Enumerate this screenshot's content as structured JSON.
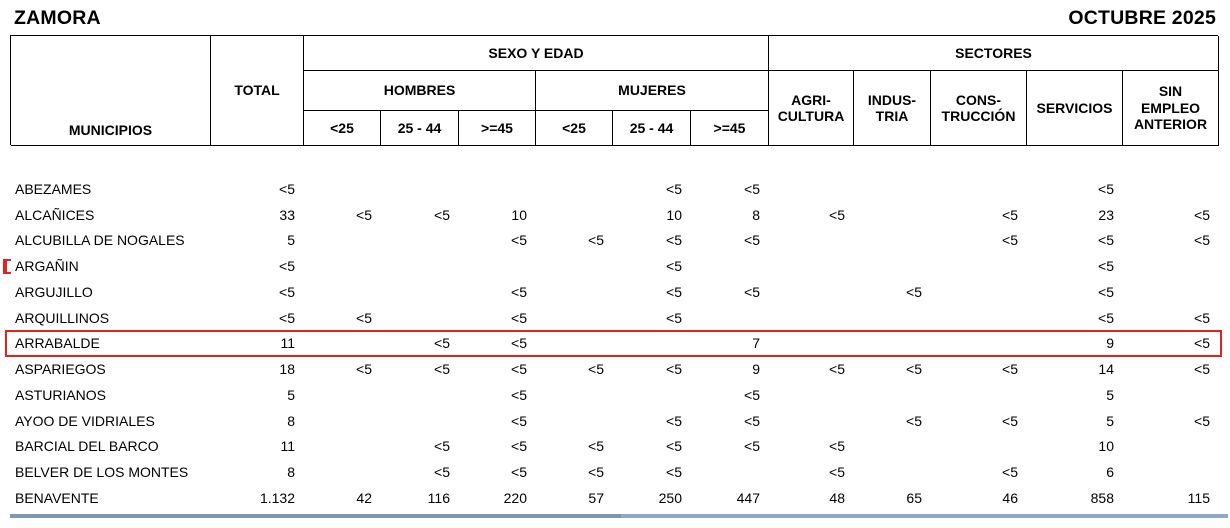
{
  "header": {
    "region": "ZAMORA",
    "period": "OCTUBRE 2025"
  },
  "table": {
    "col_municipios": "MUNICIPIOS",
    "col_total": "TOTAL",
    "group_sexo_edad": "SEXO Y EDAD",
    "group_sectores": "SECTORES",
    "sub_hombres": "HOMBRES",
    "sub_mujeres": "MUJERES",
    "age_cols": [
      "<25",
      "25 - 44",
      ">=45"
    ],
    "sector_cols": [
      "AGRI-\nCULTURA",
      "INDUS-\nTRIA",
      "CONS-\nTRUCCIÓN",
      "SERVICIOS",
      "SIN\nEMPLEO\nANTERIOR"
    ],
    "columns_order": [
      "MUNICIPIOS",
      "TOTAL",
      "HOMBRES <25",
      "HOMBRES 25-44",
      "HOMBRES >=45",
      "MUJERES <25",
      "MUJERES 25-44",
      "MUJERES >=45",
      "AGRICULTURA",
      "INDUSTRIA",
      "CONSTRUCCIÓN",
      "SERVICIOS",
      "SIN EMPLEO ANTERIOR"
    ],
    "rows": [
      [
        "ABEZAMES",
        "<5",
        "",
        "",
        "",
        "",
        "<5",
        "<5",
        "",
        "",
        "",
        "<5",
        ""
      ],
      [
        "ALCAÑICES",
        "33",
        "<5",
        "<5",
        "10",
        "",
        "10",
        "8",
        "<5",
        "",
        "<5",
        "23",
        "<5"
      ],
      [
        "ALCUBILLA DE NOGALES",
        "5",
        "",
        "",
        "<5",
        "<5",
        "<5",
        "<5",
        "",
        "",
        "<5",
        "<5",
        "<5"
      ],
      [
        "ARGAÑIN",
        "<5",
        "",
        "",
        "",
        "",
        "<5",
        "",
        "",
        "",
        "",
        "<5",
        ""
      ],
      [
        "ARGUJILLO",
        "<5",
        "",
        "",
        "<5",
        "",
        "<5",
        "<5",
        "",
        "<5",
        "",
        "<5",
        ""
      ],
      [
        "ARQUILLINOS",
        "<5",
        "<5",
        "",
        "<5",
        "",
        "<5",
        "",
        "",
        "",
        "",
        "<5",
        "<5"
      ],
      [
        "ARRABALDE",
        "11",
        "",
        "<5",
        "<5",
        "",
        "",
        "7",
        "",
        "",
        "",
        "9",
        "<5"
      ],
      [
        "ASPARIEGOS",
        "18",
        "<5",
        "<5",
        "<5",
        "<5",
        "<5",
        "9",
        "<5",
        "<5",
        "<5",
        "14",
        "<5"
      ],
      [
        "ASTURIANOS",
        "5",
        "",
        "",
        "<5",
        "",
        "",
        "<5",
        "",
        "",
        "",
        "5",
        ""
      ],
      [
        "AYOO DE VIDRIALES",
        "8",
        "",
        "",
        "<5",
        "",
        "<5",
        "<5",
        "",
        "<5",
        "<5",
        "5",
        "<5"
      ],
      [
        "BARCIAL DEL BARCO",
        "11",
        "",
        "<5",
        "<5",
        "<5",
        "<5",
        "<5",
        "<5",
        "",
        "",
        "10",
        ""
      ],
      [
        "BELVER DE LOS MONTES",
        "8",
        "",
        "<5",
        "<5",
        "<5",
        "<5",
        "",
        "<5",
        "",
        "<5",
        "6",
        ""
      ],
      [
        "BENAVENTE",
        "1.132",
        "42",
        "116",
        "220",
        "57",
        "250",
        "447",
        "48",
        "65",
        "46",
        "858",
        "115"
      ]
    ]
  },
  "annotations": {
    "highlight_row_index": 6,
    "highlight_row_name": "ARRABALDE",
    "bracket_row_name": "ARGAÑIN",
    "highlight_color": "#e2241f",
    "underline_left_color": "#7d96b4",
    "underline_right_color": "#91a8c6"
  }
}
